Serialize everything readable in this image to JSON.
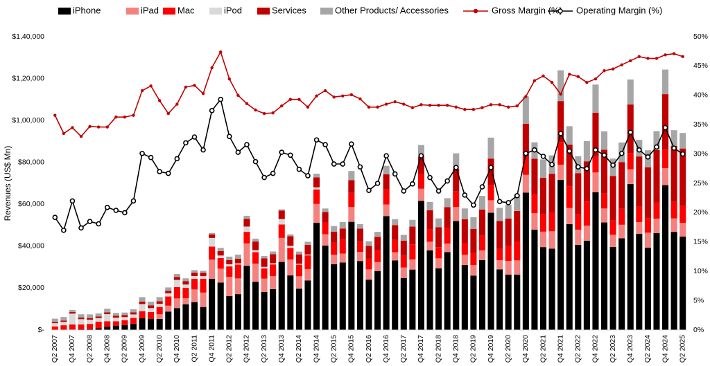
{
  "chart_data": {
    "type": "bar",
    "stacked": true,
    "y_label": "Revenues (US$ Mn)",
    "legend": "top",
    "categories": [
      "Q2 2007",
      null,
      "Q4 2007",
      null,
      "Q2 2008",
      null,
      "Q4 2008",
      null,
      "Q2 2009",
      null,
      "Q4 2009",
      null,
      "Q2 2010",
      null,
      "Q4 2010",
      null,
      "Q2 2011",
      null,
      "Q4 2011",
      null,
      "Q2 2012",
      null,
      "Q4 2012",
      null,
      "Q2 2013",
      null,
      "Q4 2013",
      null,
      "Q2 2014",
      null,
      "Q4 2014",
      null,
      "Q2 2015",
      null,
      "Q4 2015",
      null,
      "Q2 2016",
      null,
      "Q4 2016",
      null,
      "Q2 2017",
      null,
      "Q4 2017",
      null,
      "Q2 2018",
      null,
      "Q4 2018",
      null,
      "Q2 2019",
      null,
      "Q4 2019",
      null,
      "Q2 2020",
      null,
      "Q4 2020",
      null,
      "Q2 2021",
      null,
      "Q4 2021",
      null,
      "Q2 2022",
      null,
      "Q4 2022",
      null,
      "Q2 2023",
      null,
      "Q4 2023",
      null,
      "Q2 2024",
      null,
      "Q4 2024",
      null,
      "Q2 2025"
    ],
    "ylim": [
      0,
      140000
    ],
    "yticks": [
      {
        "value": 0,
        "label": "$-"
      },
      {
        "value": 20000,
        "label": "$20,000"
      },
      {
        "value": 40000,
        "label": "$40,000"
      },
      {
        "value": 60000,
        "label": "$60,000"
      },
      {
        "value": 80000,
        "label": "$80,000"
      },
      {
        "value": 100000,
        "label": "$1,00,000"
      },
      {
        "value": 120000,
        "label": "$1,20,000"
      },
      {
        "value": 140000,
        "label": "$1,40,000"
      }
    ],
    "y2lim": [
      0,
      50
    ],
    "y2ticks": [
      {
        "value": 0,
        "label": "0%"
      },
      {
        "value": 5,
        "label": "5%"
      },
      {
        "value": 10,
        "label": "10%"
      },
      {
        "value": 15,
        "label": "15%"
      },
      {
        "value": 20,
        "label": "20%"
      },
      {
        "value": 25,
        "label": "25%"
      },
      {
        "value": 30,
        "label": "30%"
      },
      {
        "value": 35,
        "label": "35%"
      },
      {
        "value": 40,
        "label": "40%"
      },
      {
        "value": 45,
        "label": "45%"
      },
      {
        "value": 50,
        "label": "50%"
      }
    ],
    "series": [
      {
        "name": "iPhone",
        "color": "#000000",
        "values": [
          null,
          118,
          241,
          378,
          419,
          806,
          1600,
          2100,
          2400,
          3000,
          5600,
          5400,
          5330,
          8820,
          10470,
          12300,
          13310,
          11000,
          24420,
          22690,
          16250,
          17130,
          30660,
          22960,
          18150,
          19510,
          32500,
          26060,
          19750,
          23680,
          51180,
          40280,
          31370,
          32210,
          51640,
          32860,
          24050,
          28160,
          54380,
          33250,
          24850,
          28850,
          61580,
          38030,
          29470,
          37190,
          51980,
          31050,
          25990,
          33360,
          55960,
          28960,
          26420,
          26440,
          65600,
          47940,
          39570,
          38870,
          71630,
          50570,
          40670,
          42630,
          65780,
          51330,
          39670,
          43800,
          69700,
          45960,
          39300,
          46220,
          69140,
          46840,
          44580
        ]
      },
      {
        "name": "iPad",
        "color": "#f4817e",
        "values": [
          null,
          null,
          null,
          null,
          null,
          null,
          null,
          null,
          null,
          null,
          null,
          null,
          2170,
          2790,
          4610,
          2840,
          6050,
          6870,
          9150,
          6590,
          9170,
          7510,
          10670,
          8750,
          6370,
          6190,
          11470,
          7610,
          5890,
          5320,
          8990,
          5430,
          4540,
          4280,
          7080,
          4410,
          4880,
          4260,
          5530,
          3890,
          4970,
          4830,
          5860,
          4110,
          4740,
          4090,
          6730,
          4870,
          5020,
          4660,
          5980,
          4370,
          6580,
          6800,
          8440,
          7810,
          7370,
          8250,
          7250,
          7650,
          7220,
          7170,
          9400,
          6670,
          5790,
          6440,
          7020,
          5560,
          7160,
          6950,
          8090,
          6400,
          6580
        ]
      },
      {
        "name": "Mac",
        "color": "#ff0000",
        "values": [
          1730,
          2160,
          2400,
          2300,
          2500,
          3200,
          2600,
          2100,
          2300,
          2800,
          3400,
          3200,
          3470,
          4390,
          5400,
          4980,
          5100,
          6620,
          6260,
          5070,
          4930,
          6620,
          5520,
          5450,
          4890,
          5620,
          6400,
          5520,
          5540,
          6630,
          6940,
          5620,
          6030,
          6880,
          6750,
          5110,
          5240,
          5740,
          7240,
          5840,
          5590,
          7170,
          6900,
          5850,
          5330,
          7410,
          7420,
          5510,
          5820,
          6990,
          7160,
          5350,
          7080,
          9030,
          8680,
          9100,
          8240,
          9180,
          10850,
          10430,
          7380,
          11510,
          7740,
          7170,
          6840,
          7610,
          7780,
          7450,
          7010,
          7740,
          8990,
          7950,
          8050
        ]
      },
      {
        "name": "iPod",
        "color": "#d9d9d9",
        "values": [
          1530,
          1620,
          5200,
          2500,
          2000,
          1700,
          3370,
          1690,
          1490,
          1650,
          3400,
          1860,
          1550,
          1500,
          3430,
          1600,
          1320,
          1210,
          4130,
          1210,
          1060,
          560,
          2530,
          960,
          730,
          570,
          2600,
          1000,
          440,
          410,
          970,
          null,
          null,
          null,
          null,
          null,
          null,
          null,
          null,
          null,
          null,
          null,
          null,
          null,
          null,
          null,
          null,
          null,
          null,
          null,
          null,
          null,
          null,
          null,
          null,
          null,
          null,
          null,
          null,
          null,
          null,
          null,
          null,
          null,
          null,
          null,
          null,
          null,
          null,
          null,
          null,
          null,
          null
        ]
      },
      {
        "name": "Services",
        "color": "#c00000",
        "values": [
          630,
          650,
          800,
          820,
          800,
          750,
          900,
          950,
          950,
          1000,
          1160,
          1330,
          1210,
          1150,
          1430,
          1630,
          1570,
          1620,
          1700,
          2150,
          2000,
          2200,
          3690,
          4110,
          4040,
          4260,
          4000,
          4570,
          4490,
          4610,
          4800,
          4990,
          5030,
          5090,
          6060,
          5990,
          5980,
          6330,
          7170,
          7040,
          7270,
          8500,
          8470,
          9190,
          9550,
          9980,
          10880,
          11450,
          11460,
          12510,
          12720,
          13350,
          13160,
          14550,
          15760,
          16900,
          17490,
          18280,
          19520,
          19820,
          19600,
          19190,
          20770,
          20910,
          21210,
          22310,
          23120,
          23870,
          24210,
          24970,
          26340,
          26650,
          27420
        ]
      },
      {
        "name": "Other Products/ Accessories",
        "color": "#a6a6a6",
        "values": [
          1520,
          1672,
          969,
          1512,
          1741,
          1444,
          1700,
          1320,
          1200,
          1420,
          2120,
          1710,
          1970,
          1690,
          1400,
          1320,
          1220,
          950,
          670,
          1480,
          1610,
          1950,
          1440,
          1370,
          1140,
          1320,
          620,
          890,
          1320,
          1470,
          1720,
          1690,
          2640,
          3040,
          4340,
          2190,
          2210,
          2360,
          4030,
          2880,
          2730,
          3230,
          5480,
          3960,
          4180,
          4230,
          7300,
          5140,
          5520,
          6520,
          10000,
          6280,
          6450,
          7880,
          12960,
          7830,
          8760,
          8780,
          14700,
          8810,
          8090,
          9650,
          13460,
          8760,
          8290,
          9340,
          11960,
          7910,
          8100,
          9050,
          11740,
          7520,
          7410
        ]
      },
      {
        "name": "Gross Margin (%)",
        "type": "line",
        "axis": "y2",
        "color": "#c00000",
        "values": [
          36.6,
          33.5,
          34.5,
          33.0,
          34.7,
          34.6,
          34.6,
          36.3,
          36.3,
          36.6,
          40.8,
          41.6,
          39.1,
          36.9,
          38.5,
          41.4,
          41.7,
          40.3,
          44.7,
          47.4,
          42.8,
          40.0,
          38.6,
          37.5,
          36.9,
          37.0,
          38.2,
          39.3,
          39.3,
          38.0,
          39.9,
          40.8,
          39.7,
          39.9,
          40.1,
          39.4,
          38.0,
          38.0,
          38.5,
          38.9,
          38.5,
          37.9,
          38.4,
          38.3,
          38.3,
          38.3,
          38.0,
          37.6,
          37.6,
          37.9,
          38.4,
          38.4,
          38.0,
          38.2,
          39.8,
          42.5,
          43.3,
          42.2,
          40.2,
          43.6,
          43.2,
          42.2,
          42.8,
          44.2,
          44.5,
          45.2,
          45.9,
          46.6,
          46.3,
          46.3,
          46.9,
          47.1,
          46.6
        ]
      },
      {
        "name": "Operating Margin (%)",
        "type": "line",
        "axis": "y2",
        "color": "#000000",
        "values": [
          19.2,
          17.0,
          22.0,
          17.4,
          18.5,
          18.1,
          20.9,
          20.4,
          20.0,
          22.0,
          30.1,
          29.4,
          27.0,
          26.7,
          29.2,
          31.9,
          32.9,
          30.7,
          37.4,
          39.3,
          33.0,
          30.3,
          31.6,
          28.7,
          26.0,
          26.7,
          30.3,
          29.8,
          27.4,
          26.3,
          32.4,
          31.6,
          28.3,
          28.3,
          31.7,
          27.8,
          23.8,
          25.0,
          29.7,
          26.6,
          23.7,
          24.9,
          29.7,
          26.0,
          23.7,
          25.4,
          27.7,
          23.0,
          21.3,
          24.4,
          27.7,
          21.9,
          21.7,
          22.9,
          30.1,
          30.7,
          29.6,
          28.2,
          33.5,
          30.5,
          27.8,
          27.5,
          30.7,
          29.8,
          28.1,
          30.1,
          33.7,
          30.7,
          29.5,
          31.2,
          34.5,
          31.0,
          30.0
        ]
      }
    ]
  }
}
